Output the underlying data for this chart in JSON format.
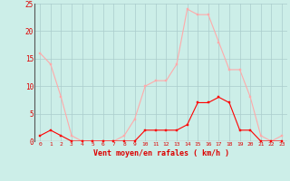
{
  "x": [
    0,
    1,
    2,
    3,
    4,
    5,
    6,
    7,
    8,
    9,
    10,
    11,
    12,
    13,
    14,
    15,
    16,
    17,
    18,
    19,
    20,
    21,
    22,
    23
  ],
  "y_mean": [
    1,
    2,
    1,
    0,
    0,
    0,
    0,
    0,
    0,
    0,
    2,
    2,
    2,
    2,
    3,
    7,
    7,
    8,
    7,
    2,
    2,
    0,
    0,
    0
  ],
  "y_gust": [
    16,
    14,
    8,
    1,
    0,
    0,
    0,
    0,
    1,
    4,
    10,
    11,
    11,
    14,
    24,
    23,
    23,
    18,
    13,
    13,
    8,
    1,
    0,
    1
  ],
  "line_color_mean": "#ff0000",
  "line_color_gust": "#ffaaaa",
  "bg_color": "#cceee8",
  "grid_color": "#aacccc",
  "xlabel": "Vent moyen/en rafales ( km/h )",
  "xlabel_color": "#dd0000",
  "tick_color": "#dd0000",
  "ylim": [
    0,
    25
  ],
  "xlim": [
    -0.5,
    23.5
  ],
  "yticks": [
    0,
    5,
    10,
    15,
    20,
    25
  ],
  "xticks": [
    0,
    1,
    2,
    3,
    4,
    5,
    6,
    7,
    8,
    9,
    10,
    11,
    12,
    13,
    14,
    15,
    16,
    17,
    18,
    19,
    20,
    21,
    22,
    23
  ]
}
